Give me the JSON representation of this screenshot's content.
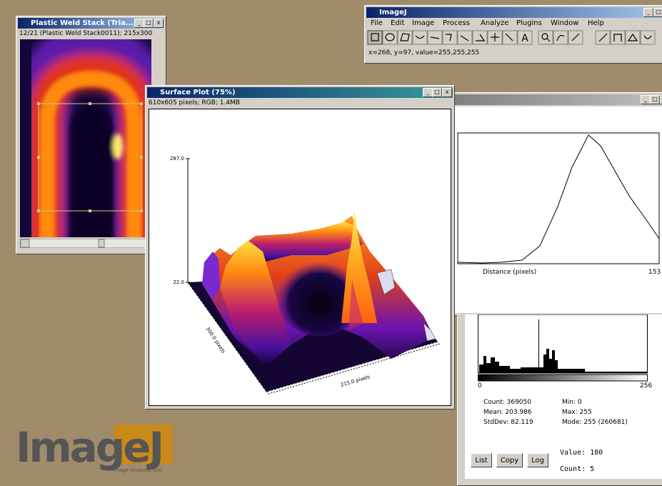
{
  "stack_window": {
    "title": "Plastic Weld Stack (Tria...",
    "info": "12/21 (Plastic Weld Stack0011); 215x300"
  },
  "main_window": {
    "title": "ImageJ",
    "menu": [
      "File",
      "Edit",
      "Image",
      "Process",
      "Analyze",
      "Plugins",
      "Window",
      "Help"
    ],
    "text_tool": "A",
    "status": "x=268, y=97, value=255,255,255"
  },
  "surface_window": {
    "title": "Surface Plot (75%)",
    "info": "610x605 pixels; RGB; 1.4MB",
    "z_max": "287.0",
    "z_min": "22.0",
    "y_axis_label": "300.0 pixels",
    "x_axis_label": "215.0 pixels"
  },
  "profile_window": {
    "x_axis_label": "Distance (pixels)",
    "x_max": "153"
  },
  "histogram_window": {
    "x_min": "0",
    "x_max": "256",
    "stats_left": [
      "Count: 369050",
      "Mean: 203.986",
      "StdDev: 82.119"
    ],
    "stats_right": [
      "Min: 0",
      "Max: 255",
      "Mode: 255 (260681)"
    ],
    "buttons": [
      "List",
      "Copy",
      "Log"
    ],
    "value": "Value: 180",
    "count": "Count: 5"
  },
  "logo": {
    "text": "ImageJ",
    "tagline": "Image Analysis Tool"
  }
}
